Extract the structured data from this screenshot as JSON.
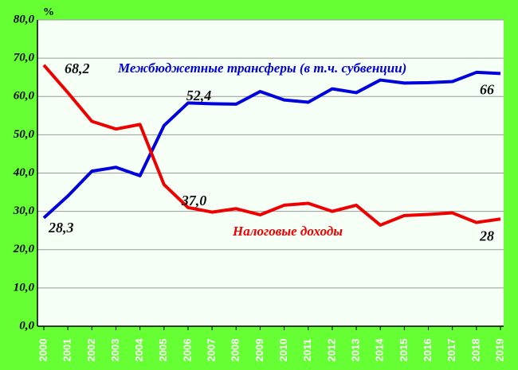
{
  "chart_data": {
    "type": "line",
    "ylabel": "%",
    "categories": [
      "2000",
      "2001",
      "2002",
      "2003",
      "2004",
      "2005",
      "2006",
      "2007",
      "2008",
      "2009",
      "2010",
      "2011",
      "2012",
      "2013",
      "2014",
      "2015",
      "2016",
      "2017",
      "2018",
      "2019"
    ],
    "series": [
      {
        "name": "Межбюджетные трансферы (в т.ч.  субвенции)",
        "color": "#0000dd",
        "values": [
          28.3,
          34,
          40.5,
          41.5,
          39.3,
          52.4,
          58.3,
          58.1,
          58.0,
          61.3,
          59.1,
          58.5,
          62.0,
          61.0,
          64.3,
          63.5,
          63.6,
          63.9,
          66.3,
          66
        ],
        "value_labels": [
          "28,3",
          null,
          null,
          null,
          null,
          "52,4",
          null,
          null,
          null,
          null,
          null,
          null,
          null,
          null,
          null,
          null,
          null,
          null,
          null,
          "66"
        ]
      },
      {
        "name": "Налоговые доходы",
        "color": "#ee0000",
        "values": [
          68.2,
          61,
          53.5,
          51.5,
          52.7,
          37.0,
          31.0,
          29.8,
          30.7,
          29.1,
          31.6,
          32.1,
          30.0,
          31.6,
          26.4,
          28.9,
          29.2,
          29.6,
          27.1,
          28
        ],
        "value_labels": [
          "68,2",
          null,
          null,
          null,
          null,
          "37,0",
          null,
          null,
          null,
          null,
          null,
          null,
          null,
          null,
          null,
          null,
          null,
          null,
          null,
          "28"
        ]
      }
    ],
    "ylim": [
      0,
      80
    ],
    "yticks": [
      {
        "value": 0,
        "label": "0,0"
      },
      {
        "value": 10,
        "label": "10,0"
      },
      {
        "value": 20,
        "label": "20,0"
      },
      {
        "value": 30,
        "label": "30,0"
      },
      {
        "value": 40,
        "label": "40,0"
      },
      {
        "value": 50,
        "label": "50,0"
      },
      {
        "value": 60,
        "label": "60,0"
      },
      {
        "value": 70,
        "label": "70,0"
      },
      {
        "value": 80,
        "label": "80,0"
      }
    ],
    "grid": true
  }
}
